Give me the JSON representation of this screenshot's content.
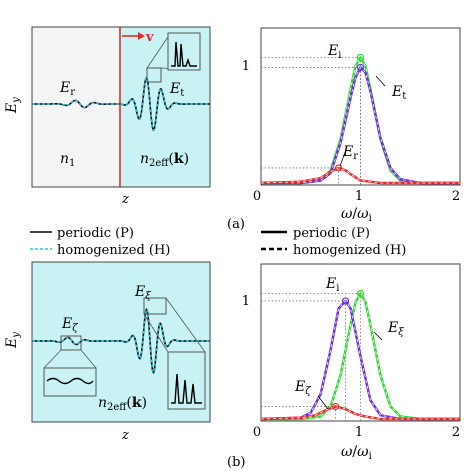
{
  "panel_labels": {
    "a": "(a)",
    "b": "(b)"
  },
  "legend_left": {
    "periodic": "periodic (P)",
    "homogenized": "homogenized (H)"
  },
  "legend_right": {
    "periodic": "periodic (P)",
    "homogenized": "homogenized (H)"
  },
  "field_a": {
    "ylabel": "E_y",
    "xlabel": "z",
    "velocity": "v",
    "label_Er": "E_r",
    "label_Et": "E_t",
    "label_n1": "n_1",
    "label_n2": "n_2eff(k)"
  },
  "field_b": {
    "ylabel": "E_y",
    "xlabel": "z",
    "label_Ezeta": "E_ζ",
    "label_Exi": "E_ξ",
    "label_n2": "n_2eff(k)"
  },
  "colors": {
    "green": "#2bd92b",
    "purple": "#6a2bd9",
    "red": "#e82a2a",
    "dashed_blue": "#29c8e6",
    "medium_left": "#f4f5f5",
    "medium_right": "#c9f2f4"
  },
  "chart_data": [
    {
      "type": "line",
      "panel": "a",
      "xlabel": "ω/ω_i",
      "xticks": [
        "0",
        "1",
        "2"
      ],
      "yticks": [
        "1"
      ],
      "xlim": [
        0,
        2
      ],
      "ylim": [
        0,
        1.25
      ],
      "annotations": [
        "E_i",
        "E_t",
        "E_r"
      ],
      "series": [
        {
          "name": "E_i",
          "color": "green",
          "x": [
            0,
            0.4,
            0.6,
            0.7,
            0.8,
            0.9,
            0.95,
            1.0,
            1.05,
            1.1,
            1.2,
            1.3,
            1.4,
            1.6,
            2.0
          ],
          "y": [
            0,
            0,
            0.02,
            0.1,
            0.35,
            0.75,
            0.93,
            1.0,
            0.93,
            0.75,
            0.35,
            0.1,
            0.02,
            0,
            0
          ]
        },
        {
          "name": "E_t",
          "color": "purple",
          "x": [
            0,
            0.4,
            0.6,
            0.7,
            0.8,
            0.9,
            0.95,
            1.0,
            1.05,
            1.1,
            1.2,
            1.3,
            1.4,
            1.6,
            2.0
          ],
          "y": [
            0,
            0,
            0.02,
            0.08,
            0.32,
            0.68,
            0.84,
            0.92,
            0.88,
            0.73,
            0.36,
            0.12,
            0.03,
            0,
            0
          ]
        },
        {
          "name": "E_r",
          "color": "red",
          "x": [
            0,
            0.4,
            0.6,
            0.7,
            0.78,
            0.85,
            0.9,
            1.0,
            1.1,
            1.2,
            2.0
          ],
          "y": [
            0,
            0.01,
            0.04,
            0.09,
            0.12,
            0.1,
            0.07,
            0.02,
            0.01,
            0,
            0
          ]
        }
      ]
    },
    {
      "type": "line",
      "panel": "b",
      "xlabel": "ω/ω_i",
      "xticks": [
        "0",
        "1",
        "2"
      ],
      "yticks": [
        "1"
      ],
      "xlim": [
        0,
        2
      ],
      "ylim": [
        0,
        1.25
      ],
      "annotations": [
        "E_i",
        "E_ξ",
        "E_ζ"
      ],
      "series": [
        {
          "name": "E_i",
          "color": "green",
          "x": [
            0,
            0.4,
            0.6,
            0.7,
            0.8,
            0.9,
            0.95,
            1.0,
            1.05,
            1.1,
            1.2,
            1.3,
            1.4,
            1.6,
            2.0
          ],
          "y": [
            0,
            0,
            0.02,
            0.1,
            0.35,
            0.75,
            0.93,
            1.0,
            0.93,
            0.75,
            0.35,
            0.1,
            0.02,
            0,
            0
          ]
        },
        {
          "name": "E_ξ",
          "color": "purple",
          "x": [
            0,
            0.4,
            0.5,
            0.6,
            0.7,
            0.78,
            0.85,
            0.9,
            1.0,
            1.1,
            1.2,
            1.4,
            2.0
          ],
          "y": [
            0,
            0.01,
            0.05,
            0.2,
            0.55,
            0.88,
            0.94,
            0.88,
            0.5,
            0.15,
            0.03,
            0,
            0
          ]
        },
        {
          "name": "E_ζ",
          "color": "red",
          "x": [
            0,
            0.4,
            0.55,
            0.65,
            0.75,
            0.85,
            0.95,
            1.05,
            1.2,
            2.0
          ],
          "y": [
            0,
            0.01,
            0.03,
            0.07,
            0.1,
            0.08,
            0.04,
            0.02,
            0,
            0
          ]
        }
      ]
    }
  ]
}
